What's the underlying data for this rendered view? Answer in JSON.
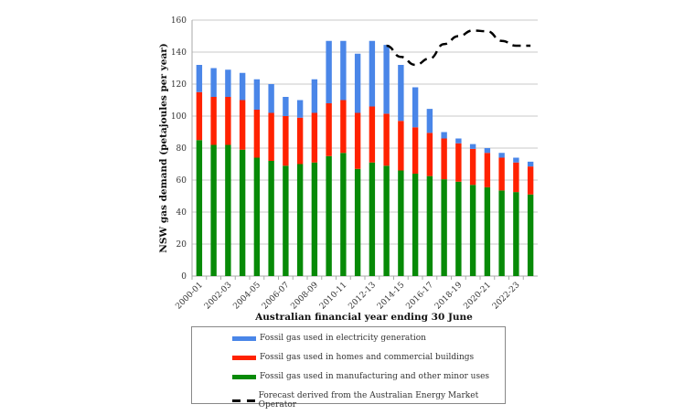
{
  "chart_data": {
    "type": "bar",
    "stacked": true,
    "categories": [
      "2000-01",
      "2001-02",
      "2002-03",
      "2003-04",
      "2004-05",
      "2005-06",
      "2006-07",
      "2007-08",
      "2008-09",
      "2009-10",
      "2010-11",
      "2011-12",
      "2012-13",
      "2013-14",
      "2014-15",
      "2015-16",
      "2016-17",
      "2017-18",
      "2018-19",
      "2019-20",
      "2020-21",
      "2021-22",
      "2022-23",
      "2023-24"
    ],
    "tick_label_every": 2,
    "series": [
      {
        "name": "Fossil gas used in manufacturing and other minor uses",
        "color": "#078a07",
        "values": [
          85,
          82,
          82,
          79,
          74,
          72,
          69,
          70,
          71,
          75,
          77,
          67,
          71,
          69,
          66,
          64,
          62.5,
          60.5,
          59,
          57,
          55.5,
          53.5,
          52.5,
          51
        ]
      },
      {
        "name": "Fossil gas used in homes and commercial buildings",
        "color": "#ff2200",
        "values": [
          30,
          30,
          30,
          31,
          30,
          30,
          31,
          29,
          31,
          33,
          33,
          35,
          35,
          32.5,
          31,
          29,
          27,
          25.5,
          24,
          22.5,
          21.5,
          20.5,
          18.5,
          17.5
        ]
      },
      {
        "name": "Fossil gas used in electricity generation",
        "color": "#4a86e8",
        "values": [
          17,
          18,
          17,
          17,
          19,
          18,
          12,
          11,
          21,
          39,
          37,
          37,
          41,
          43,
          35,
          25,
          15,
          4,
          3,
          3,
          3,
          3,
          3,
          3
        ]
      }
    ],
    "forecast": {
      "name": "Forecast derived from the Australian Energy Market Operator",
      "color": "#000000",
      "categories": [
        "2013-14",
        "2014-15",
        "2015-16",
        "2016-17",
        "2017-18",
        "2018-19",
        "2019-20",
        "2020-21",
        "2021-22",
        "2022-23",
        "2023-24"
      ],
      "values": [
        144,
        137,
        132,
        136,
        145,
        150,
        153.5,
        153,
        147,
        144,
        144
      ]
    },
    "xlabel": "Australian financial year ending 30 June",
    "ylabel": "NSW gas demand (petajoules per year)",
    "ylim": [
      0,
      160
    ],
    "yticks": [
      0,
      20,
      40,
      60,
      80,
      100,
      120,
      140,
      160
    ],
    "grid": true,
    "legend_position": "bottom"
  }
}
